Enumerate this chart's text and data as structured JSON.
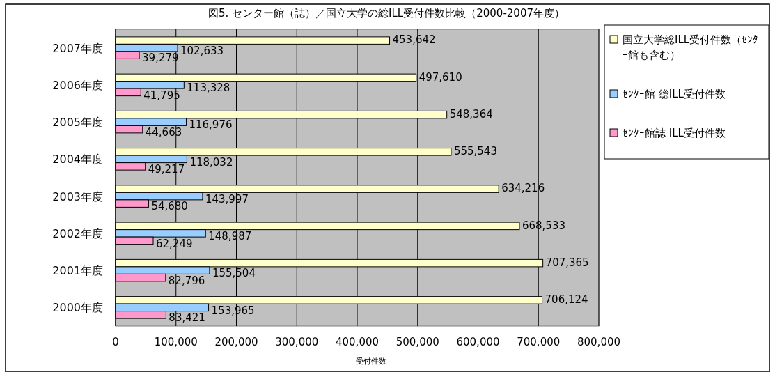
{
  "chart_data": {
    "type": "bar",
    "orientation": "horizontal",
    "title": "図5. センター館（誌）／国立大学の総ILL受付件数比較（2000-2007年度）",
    "xlabel": "受付件数",
    "categories": [
      "2007年度",
      "2006年度",
      "2005年度",
      "2004年度",
      "2003年度",
      "2002年度",
      "2001年度",
      "2000年度"
    ],
    "series": [
      {
        "name": "国立大学総ILL受付件数（ｾﾝﾀｰ館も含む）",
        "color": "#ffffcc",
        "values": [
          453642,
          497610,
          548364,
          555543,
          634216,
          668533,
          707365,
          706124
        ],
        "value_labels": [
          "453,642",
          "497,610",
          "548,364",
          "555,543",
          "634,216",
          "668,533",
          "707,365",
          "706,124"
        ]
      },
      {
        "name": "ｾﾝﾀｰ館 総ILL受付件数",
        "color": "#99ccff",
        "values": [
          102633,
          113328,
          116976,
          118032,
          143997,
          148987,
          155504,
          153965
        ],
        "value_labels": [
          "102,633",
          "113,328",
          "116,976",
          "118,032",
          "143,997",
          "148,987",
          "155,504",
          "153,965"
        ]
      },
      {
        "name": "ｾﾝﾀｰ館誌 ILL受付件数",
        "color": "#ff99cc",
        "values": [
          39279,
          41795,
          44663,
          49217,
          54680,
          62249,
          82796,
          83421
        ],
        "value_labels": [
          "39,279",
          "41,795",
          "44,663",
          "49,217",
          "54,680",
          "62,249",
          "82,796",
          "83,421"
        ]
      }
    ],
    "xlim": [
      0,
      800000
    ],
    "xticks": [
      0,
      {
        "value": 100000,
        "label": "100,000"
      },
      {
        "value": 200000,
        "label": "200,000"
      },
      {
        "value": 300000,
        "label": "300,000"
      },
      {
        "value": 400000,
        "label": "400,000"
      },
      {
        "value": 500000,
        "label": "500,000"
      },
      {
        "value": 600000,
        "label": "600,000"
      },
      {
        "value": 700000,
        "label": "700,000"
      },
      {
        "value": 800000,
        "label": "800,000"
      }
    ],
    "grid": "x",
    "legend": "top right"
  }
}
